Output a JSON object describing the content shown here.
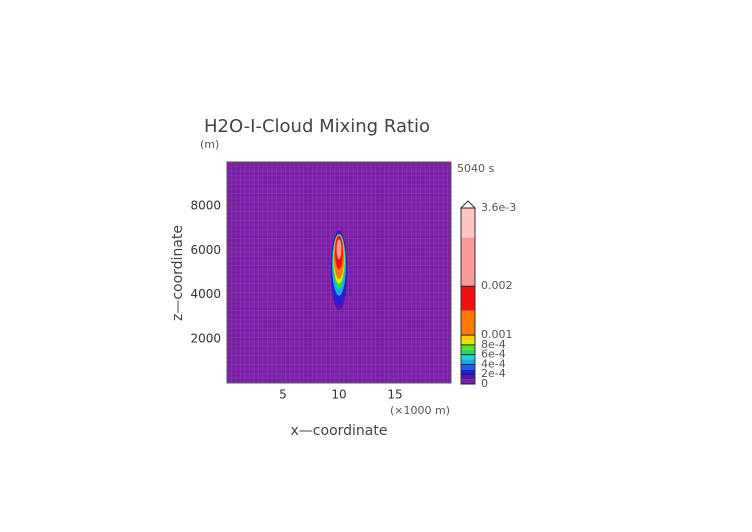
{
  "chart_data": {
    "type": "contour",
    "title": "H2O-I-Cloud Mixing Ratio",
    "y_unit": "(m)",
    "time_label": "5040 s",
    "x_label": "x—coordinate",
    "y_label": "z—coordinate",
    "x_unit": "(×1000 m)",
    "xlim": [
      0,
      20
    ],
    "ylim": [
      0,
      10000
    ],
    "xticks": [
      5,
      10,
      15
    ],
    "yticks": [
      2000,
      4000,
      6000,
      8000
    ],
    "contours": [
      {
        "level": 0.0001,
        "x": 10,
        "z": 5100,
        "rx": 0.75,
        "rz": 1800
      },
      {
        "level": 0.0002,
        "x": 10,
        "z": 5200,
        "rx": 0.7,
        "rz": 1650
      },
      {
        "level": 0.0004,
        "x": 10,
        "z": 5350,
        "rx": 0.62,
        "rz": 1400
      },
      {
        "level": 0.0006,
        "x": 10,
        "z": 5500,
        "rx": 0.56,
        "rz": 1250
      },
      {
        "level": 0.0008,
        "x": 10,
        "z": 5600,
        "rx": 0.5,
        "rz": 1100
      },
      {
        "level": 0.001,
        "x": 10,
        "z": 5700,
        "rx": 0.45,
        "rz": 1000
      },
      {
        "level": 0.0015,
        "x": 10,
        "z": 5900,
        "rx": 0.35,
        "rz": 750
      },
      {
        "level": 0.002,
        "x": 10,
        "z": 6050,
        "rx": 0.22,
        "rz": 450
      }
    ],
    "colorbar": {
      "levels": [
        0,
        0.0001,
        0.0002,
        0.0003,
        0.0004,
        0.0005,
        0.0006,
        0.0007,
        0.0008,
        0.0009,
        0.001,
        0.0015,
        0.002,
        0.003,
        0.0036
      ],
      "colors": [
        "#7a1fa6",
        "#5a10b8",
        "#2020d8",
        "#1c60f0",
        "#18a8f0",
        "#18d8d0",
        "#20d870",
        "#60e020",
        "#d8f000",
        "#f8d000",
        "#ff7a00",
        "#f01010",
        "#f89a9a",
        "#ffc4c4"
      ],
      "ticks": [
        0,
        {
          "value": 0.0002,
          "label": "2e-4"
        },
        {
          "value": 0.0004,
          "label": "4e-4"
        },
        {
          "value": 0.0006,
          "label": "6e-4"
        },
        {
          "value": 0.0008,
          "label": "8e-4"
        },
        0.001,
        0.002,
        {
          "value": 0.0036,
          "label": "3.6e-3"
        }
      ]
    }
  }
}
